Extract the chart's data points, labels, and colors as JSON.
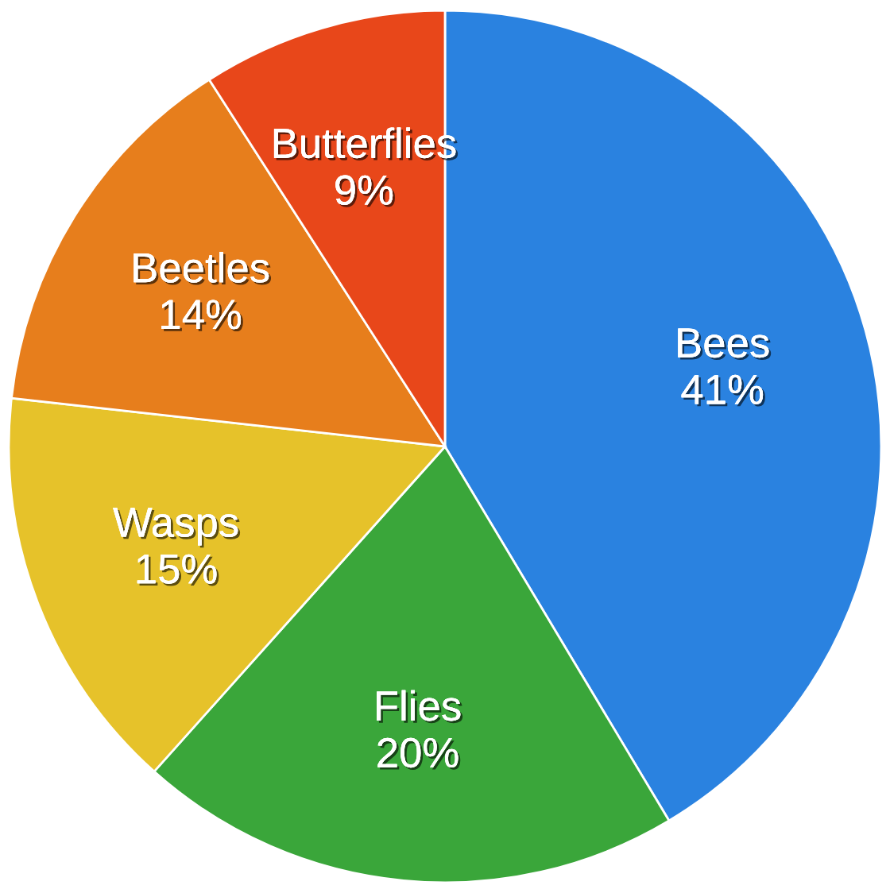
{
  "chart_data": {
    "type": "pie",
    "categories": [
      "Bees",
      "Flies",
      "Wasps",
      "Beetles",
      "Butterflies"
    ],
    "values": [
      41,
      20,
      15,
      14,
      9
    ],
    "value_labels": [
      "41%",
      "20%",
      "15%",
      "14%",
      "9%"
    ],
    "colors": [
      "#2a82e0",
      "#3aa63a",
      "#e6c22a",
      "#e77e1c",
      "#e8471a"
    ]
  }
}
